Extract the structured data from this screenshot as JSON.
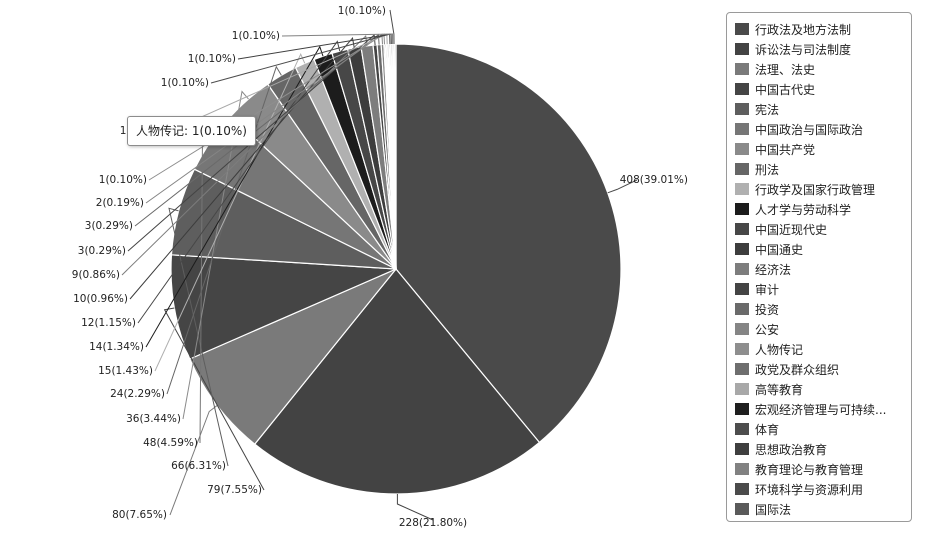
{
  "chart_data": {
    "type": "pie",
    "slices": [
      {
        "name": "行政法及地方法制",
        "value": 408,
        "label": "408(39.01%)",
        "color": "#4a4a4a"
      },
      {
        "name": "诉讼法与司法制度",
        "value": 228,
        "label": "228(21.80%)",
        "color": "#434343"
      },
      {
        "name": "法理、法史",
        "value": 80,
        "label": "80(7.65%)",
        "color": "#7a7a7a"
      },
      {
        "name": "中国古代史",
        "value": 79,
        "label": "79(7.55%)",
        "color": "#454545"
      },
      {
        "name": "宪法",
        "value": 66,
        "label": "66(6.31%)",
        "color": "#5e5e5e"
      },
      {
        "name": "中国政治与国际政治",
        "value": 48,
        "label": "48(4.59%)",
        "color": "#767676"
      },
      {
        "name": "中国共产党",
        "value": 36,
        "label": "36(3.44%)",
        "color": "#8a8a8a"
      },
      {
        "name": "刑法",
        "value": 24,
        "label": "24(2.29%)",
        "color": "#666666"
      },
      {
        "name": "行政学及国家行政管理",
        "value": 15,
        "label": "15(1.43%)",
        "color": "#b0b0b0"
      },
      {
        "name": "人才学与劳动科学",
        "value": 14,
        "label": "14(1.34%)",
        "color": "#1c1c1c"
      },
      {
        "name": "中国近现代史",
        "value": 12,
        "label": "12(1.15%)",
        "color": "#474747"
      },
      {
        "name": "中国通史",
        "value": 10,
        "label": "10(0.96%)",
        "color": "#3d3d3d"
      },
      {
        "name": "经济法",
        "value": 9,
        "label": "9(0.86%)",
        "color": "#7d7d7d"
      },
      {
        "name": "审计",
        "value": 3,
        "label": "3(0.29%)",
        "color": "#444444"
      },
      {
        "name": "投资",
        "value": 3,
        "label": "3(0.29%)",
        "color": "#6a6a6a"
      },
      {
        "name": "公安",
        "value": 2,
        "label": "2(0.19%)",
        "color": "#858585"
      },
      {
        "name": "人物传记",
        "value": 1,
        "label": "1(0.10%)",
        "color": "#8e8e8e"
      },
      {
        "name": "政党及群众组织",
        "value": 1,
        "label": "1(0.10%)",
        "color": "#6e6e6e"
      },
      {
        "name": "高等教育",
        "value": 1,
        "label": "1(0.10%)",
        "color": "#a8a8a8"
      },
      {
        "name": "宏观经济管理与可持续...",
        "value": 1,
        "label": "1(0.10%)",
        "color": "#1f1f1f"
      },
      {
        "name": "体育",
        "value": 1,
        "label": "1(0.10%)",
        "color": "#4d4d4d"
      },
      {
        "name": "思想政治教育",
        "value": 1,
        "label": "1(0.10%)",
        "color": "#3f3f3f"
      },
      {
        "name": "教育理论与教育管理",
        "value": 1,
        "label": "1(0.10%)",
        "color": "#818181"
      },
      {
        "name": "环境科学与资源利用",
        "value": 1,
        "label": "1(0.10%)",
        "color": "#4b4b4b"
      },
      {
        "name": "国际法",
        "value": 1,
        "label": "1(0.10%)",
        "color": "#5a5a5a"
      }
    ],
    "title": "",
    "legend": "right"
  },
  "tooltip": {
    "text": "人物传记: 1(0.10%)"
  }
}
